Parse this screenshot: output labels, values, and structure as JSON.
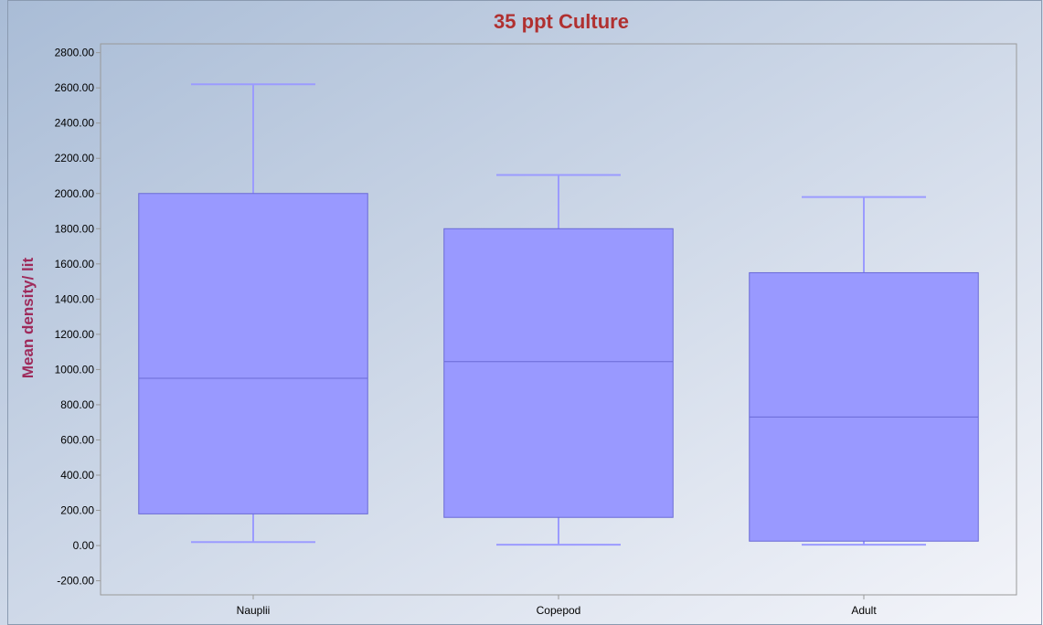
{
  "chart_data": {
    "type": "box",
    "title": "35 ppt Culture",
    "xlabel": "",
    "ylabel": "Mean density/ lit",
    "ylim": [
      -280,
      2850
    ],
    "yticks": [
      -200,
      0,
      200,
      400,
      600,
      800,
      1000,
      1200,
      1400,
      1600,
      1800,
      2000,
      2200,
      2400,
      2600,
      2800
    ],
    "ytick_labels": [
      "-200.00",
      "0.00",
      "200.00",
      "400.00",
      "600.00",
      "800.00",
      "1000.00",
      "1200.00",
      "1400.00",
      "1600.00",
      "1800.00",
      "2000.00",
      "2200.00",
      "2400.00",
      "2600.00",
      "2800.00"
    ],
    "categories": [
      "Nauplii",
      "Copepod",
      "Adult"
    ],
    "boxes": [
      {
        "category": "Nauplii",
        "min": 20,
        "q1": 180,
        "median": 950,
        "q3": 2000,
        "max": 2620
      },
      {
        "category": "Copepod",
        "min": 5,
        "q1": 160,
        "median": 1045,
        "q3": 1800,
        "max": 2105
      },
      {
        "category": "Adult",
        "min": 5,
        "q1": 25,
        "median": 730,
        "q3": 1550,
        "max": 1980
      }
    ],
    "grid": false,
    "legend": "none",
    "colors": {
      "box_fill": "#9999ff",
      "box_stroke": "#6a6ad6",
      "whisker": "#9b9bff",
      "title": "#b03030",
      "ylabel": "#9e2a5a",
      "axis": "#999999",
      "background_start": "#a9bcd6",
      "background_end": "#f4f5fa"
    }
  }
}
